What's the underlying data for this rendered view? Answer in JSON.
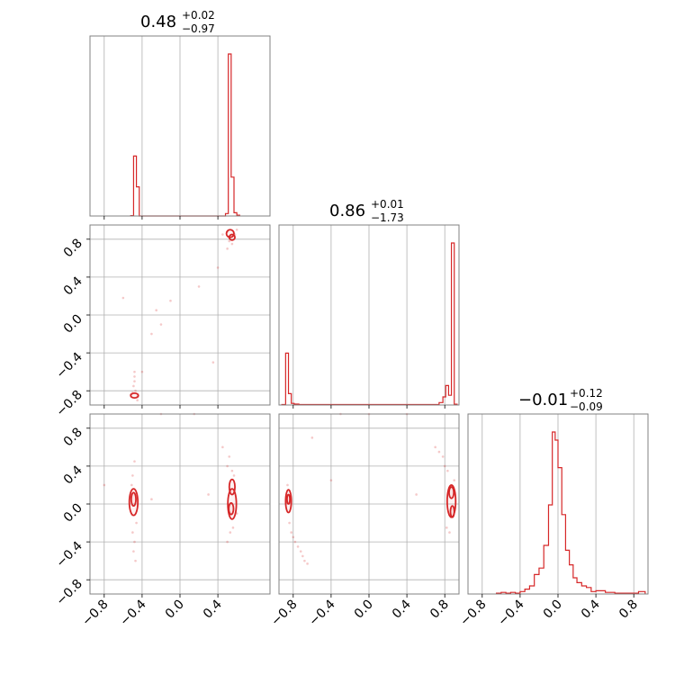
{
  "chart_data": {
    "type": "corner",
    "color": "#d62728",
    "grid": true,
    "parameters": [
      {
        "title": {
          "median": "0.48",
          "plus": "+0.02",
          "minus": "−0.97"
        },
        "range": [
          -0.95,
          0.95
        ],
        "ticks": [
          -0.8,
          -0.4,
          0.0,
          0.4
        ],
        "tick_labels": [
          "−0.8",
          "−0.4",
          "0.0",
          "0.4"
        ],
        "histogram": [
          {
            "lo": -0.52,
            "hi": -0.49,
            "h": 0.002
          },
          {
            "lo": -0.49,
            "hi": -0.46,
            "h": 0.37
          },
          {
            "lo": -0.46,
            "hi": -0.43,
            "h": 0.18
          },
          {
            "lo": -0.43,
            "hi": 0.48,
            "h": 0.0
          },
          {
            "lo": 0.48,
            "hi": 0.51,
            "h": 0.015
          },
          {
            "lo": 0.51,
            "hi": 0.54,
            "h": 1.0
          },
          {
            "lo": 0.54,
            "hi": 0.57,
            "h": 0.24
          },
          {
            "lo": 0.57,
            "hi": 0.6,
            "h": 0.02
          },
          {
            "lo": 0.6,
            "hi": 0.63,
            "h": 0.005
          }
        ]
      },
      {
        "title": {
          "median": "0.86",
          "plus": "+0.01",
          "minus": "−1.73"
        },
        "range": [
          -0.95,
          0.95
        ],
        "ticks": [
          -0.8,
          -0.4,
          0.0,
          0.4,
          0.8
        ],
        "tick_labels": [
          "−0.8",
          "−0.4",
          "0.0",
          "0.4",
          "0.8"
        ],
        "histogram": [
          {
            "lo": -0.92,
            "hi": -0.88,
            "h": 0.003
          },
          {
            "lo": -0.88,
            "hi": -0.85,
            "h": 0.32
          },
          {
            "lo": -0.85,
            "hi": -0.82,
            "h": 0.07
          },
          {
            "lo": -0.82,
            "hi": -0.79,
            "h": 0.01
          },
          {
            "lo": -0.79,
            "hi": -0.74,
            "h": 0.006
          },
          {
            "lo": -0.74,
            "hi": 0.74,
            "h": 0.003
          },
          {
            "lo": 0.74,
            "hi": 0.78,
            "h": 0.015
          },
          {
            "lo": 0.78,
            "hi": 0.81,
            "h": 0.05
          },
          {
            "lo": 0.81,
            "hi": 0.84,
            "h": 0.12
          },
          {
            "lo": 0.84,
            "hi": 0.87,
            "h": 0.06
          },
          {
            "lo": 0.87,
            "hi": 0.9,
            "h": 1.0
          },
          {
            "lo": 0.9,
            "hi": 0.93,
            "h": 0.005
          }
        ]
      },
      {
        "title": {
          "median": "−0.01",
          "plus": "+0.12",
          "minus": "−0.09"
        },
        "range": [
          -0.95,
          0.95
        ],
        "ticks": [
          -0.8,
          -0.4,
          0.0,
          0.4,
          0.8
        ],
        "tick_labels": [
          "−0.8",
          "−0.4",
          "0.0",
          "0.4",
          "0.8"
        ],
        "histogram": [
          {
            "lo": -0.65,
            "hi": -0.6,
            "h": 0.005
          },
          {
            "lo": -0.6,
            "hi": -0.55,
            "h": 0.01
          },
          {
            "lo": -0.55,
            "hi": -0.5,
            "h": 0.005
          },
          {
            "lo": -0.5,
            "hi": -0.45,
            "h": 0.01
          },
          {
            "lo": -0.45,
            "hi": -0.4,
            "h": 0.005
          },
          {
            "lo": -0.4,
            "hi": -0.35,
            "h": 0.015
          },
          {
            "lo": -0.35,
            "hi": -0.3,
            "h": 0.03
          },
          {
            "lo": -0.3,
            "hi": -0.25,
            "h": 0.05
          },
          {
            "lo": -0.25,
            "hi": -0.2,
            "h": 0.12
          },
          {
            "lo": -0.2,
            "hi": -0.15,
            "h": 0.16
          },
          {
            "lo": -0.15,
            "hi": -0.1,
            "h": 0.3
          },
          {
            "lo": -0.1,
            "hi": -0.06,
            "h": 0.55
          },
          {
            "lo": -0.06,
            "hi": -0.03,
            "h": 1.0
          },
          {
            "lo": -0.03,
            "hi": 0.0,
            "h": 0.95
          },
          {
            "lo": 0.0,
            "hi": 0.04,
            "h": 0.78
          },
          {
            "lo": 0.04,
            "hi": 0.08,
            "h": 0.49
          },
          {
            "lo": 0.08,
            "hi": 0.12,
            "h": 0.27
          },
          {
            "lo": 0.12,
            "hi": 0.16,
            "h": 0.18
          },
          {
            "lo": 0.16,
            "hi": 0.2,
            "h": 0.1
          },
          {
            "lo": 0.2,
            "hi": 0.25,
            "h": 0.07
          },
          {
            "lo": 0.25,
            "hi": 0.3,
            "h": 0.05
          },
          {
            "lo": 0.3,
            "hi": 0.35,
            "h": 0.04
          },
          {
            "lo": 0.35,
            "hi": 0.4,
            "h": 0.015
          },
          {
            "lo": 0.4,
            "hi": 0.5,
            "h": 0.02
          },
          {
            "lo": 0.5,
            "hi": 0.6,
            "h": 0.01
          },
          {
            "lo": 0.6,
            "hi": 0.85,
            "h": 0.005
          },
          {
            "lo": 0.85,
            "hi": 0.92,
            "h": 0.015
          }
        ]
      }
    ],
    "pair_panels": [
      {
        "x_param": 0,
        "y_param": 1,
        "y_ticks": [
          -0.8,
          -0.4,
          0.0,
          0.4,
          0.8
        ],
        "y_tick_labels": [
          "−0.8",
          "−0.4",
          "0.0",
          "0.4",
          "0.8"
        ],
        "contours": [
          {
            "cx": -0.48,
            "cy": -0.85,
            "rx": 0.04,
            "ry": 0.025
          },
          {
            "cx": 0.53,
            "cy": 0.86,
            "rx": 0.04,
            "ry": 0.04
          },
          {
            "cx": 0.55,
            "cy": 0.82,
            "rx": 0.03,
            "ry": 0.03
          }
        ],
        "points": [
          [
            -0.48,
            -0.6
          ],
          [
            -0.48,
            -0.65
          ],
          [
            -0.48,
            -0.7
          ],
          [
            -0.49,
            -0.75
          ],
          [
            -0.47,
            -0.8
          ],
          [
            -0.5,
            -0.82
          ],
          [
            -0.45,
            -0.86
          ],
          [
            -0.52,
            -0.84
          ],
          [
            -0.45,
            -0.9
          ],
          [
            -0.4,
            -0.6
          ],
          [
            -0.3,
            -0.2
          ],
          [
            -0.25,
            0.05
          ],
          [
            -0.6,
            0.18
          ],
          [
            -0.1,
            0.15
          ],
          [
            0.2,
            0.3
          ],
          [
            0.4,
            0.5
          ],
          [
            0.5,
            0.7
          ],
          [
            0.55,
            0.75
          ],
          [
            0.52,
            0.78
          ],
          [
            0.6,
            0.9
          ],
          [
            0.58,
            0.85
          ],
          [
            0.35,
            -0.5
          ],
          [
            -0.2,
            -0.1
          ],
          [
            0.45,
            0.85
          ],
          [
            0.5,
            0.88
          ]
        ]
      },
      {
        "x_param": 0,
        "y_param": 2,
        "y_ticks": [
          -0.8,
          -0.4,
          0.0,
          0.4,
          0.8
        ],
        "y_tick_labels": [
          "−0.8",
          "−0.4",
          "0.0",
          "0.4",
          "0.8"
        ],
        "contours": [
          {
            "cx": -0.49,
            "cy": 0.02,
            "rx": 0.045,
            "ry": 0.14
          },
          {
            "cx": -0.49,
            "cy": 0.05,
            "rx": 0.025,
            "ry": 0.07
          },
          {
            "cx": 0.55,
            "cy": 0.0,
            "rx": 0.045,
            "ry": 0.16
          },
          {
            "cx": 0.55,
            "cy": 0.18,
            "rx": 0.03,
            "ry": 0.08
          },
          {
            "cx": 0.54,
            "cy": -0.05,
            "rx": 0.025,
            "ry": 0.06
          }
        ],
        "points": [
          [
            -0.5,
            -0.3
          ],
          [
            -0.48,
            -0.4
          ],
          [
            -0.49,
            -0.5
          ],
          [
            -0.47,
            -0.6
          ],
          [
            -0.5,
            0.3
          ],
          [
            -0.48,
            0.45
          ],
          [
            -0.51,
            0.2
          ],
          [
            -0.46,
            -0.2
          ],
          [
            0.5,
            0.4
          ],
          [
            0.55,
            0.35
          ],
          [
            0.53,
            -0.3
          ],
          [
            0.56,
            -0.25
          ],
          [
            0.52,
            0.5
          ],
          [
            0.57,
            0.3
          ],
          [
            0.6,
            -0.1
          ],
          [
            0.5,
            -0.4
          ],
          [
            -0.3,
            0.05
          ],
          [
            -0.2,
            0.95
          ],
          [
            0.15,
            0.95
          ],
          [
            0.45,
            0.6
          ],
          [
            -0.8,
            0.2
          ],
          [
            0.3,
            0.1
          ]
        ]
      },
      {
        "x_param": 1,
        "y_param": 2,
        "y_ticks": [],
        "y_tick_labels": [],
        "contours": [
          {
            "cx": -0.85,
            "cy": 0.03,
            "rx": 0.03,
            "ry": 0.12
          },
          {
            "cx": -0.85,
            "cy": 0.05,
            "rx": 0.015,
            "ry": 0.05
          },
          {
            "cx": 0.87,
            "cy": 0.03,
            "rx": 0.045,
            "ry": 0.17
          },
          {
            "cx": 0.87,
            "cy": 0.12,
            "rx": 0.025,
            "ry": 0.06
          },
          {
            "cx": 0.88,
            "cy": -0.08,
            "rx": 0.02,
            "ry": 0.06
          }
        ],
        "points": [
          [
            -0.84,
            -0.2
          ],
          [
            -0.82,
            -0.3
          ],
          [
            -0.8,
            -0.35
          ],
          [
            -0.78,
            -0.4
          ],
          [
            -0.75,
            -0.45
          ],
          [
            -0.72,
            -0.5
          ],
          [
            -0.7,
            -0.55
          ],
          [
            -0.68,
            -0.6
          ],
          [
            -0.65,
            -0.63
          ],
          [
            -0.86,
            0.2
          ],
          [
            0.7,
            0.6
          ],
          [
            0.74,
            0.55
          ],
          [
            0.78,
            0.5
          ],
          [
            0.8,
            0.4
          ],
          [
            0.83,
            0.35
          ],
          [
            0.85,
            -0.3
          ],
          [
            0.82,
            -0.25
          ],
          [
            0.9,
            0.25
          ],
          [
            -0.3,
            0.95
          ],
          [
            0.0,
            0.95
          ],
          [
            0.4,
            0.95
          ],
          [
            -0.6,
            0.7
          ],
          [
            -0.4,
            0.25
          ],
          [
            0.5,
            0.1
          ]
        ]
      }
    ]
  }
}
